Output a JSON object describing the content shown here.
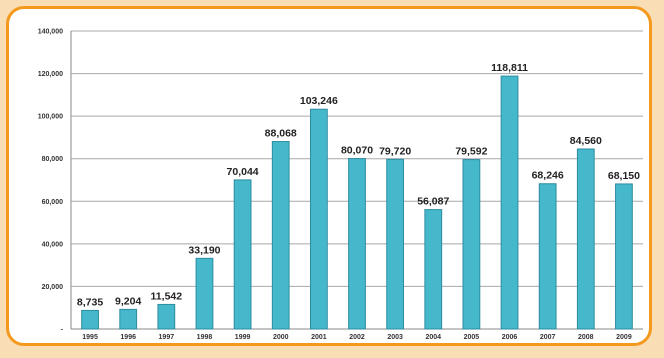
{
  "chart_data": {
    "type": "bar",
    "title": "",
    "xlabel": "",
    "ylabel": "",
    "categories": [
      "1995",
      "1996",
      "1997",
      "1998",
      "1999",
      "2000",
      "2001",
      "2002",
      "2003",
      "2004",
      "2005",
      "2006",
      "2007",
      "2008",
      "2009"
    ],
    "values": [
      8735,
      9204,
      11542,
      33190,
      70044,
      88068,
      103246,
      80070,
      79720,
      56087,
      79592,
      118811,
      68246,
      84560,
      68150
    ],
    "value_labels": [
      "8,735",
      "9,204",
      "11,542",
      "33,190",
      "70,044",
      "88,068",
      "103,246",
      "80,070",
      "79,720",
      "56,087",
      "79,592",
      "118,811",
      "68,246",
      "84,560",
      "68,150"
    ],
    "ylim": [
      0,
      140000
    ],
    "yticks": [
      0,
      20000,
      40000,
      60000,
      80000,
      100000,
      120000,
      140000
    ],
    "ytick_labels": [
      "-",
      "20,000",
      "40,000",
      "60,000",
      "80,000",
      "100,000",
      "120,000",
      "140,000"
    ],
    "grid": true,
    "legend": "none",
    "colors": {
      "bar": "#45b8cc",
      "bar_edge": "#2e8da0",
      "frame": "#f39a1e",
      "background": "#f9ddb4"
    }
  }
}
